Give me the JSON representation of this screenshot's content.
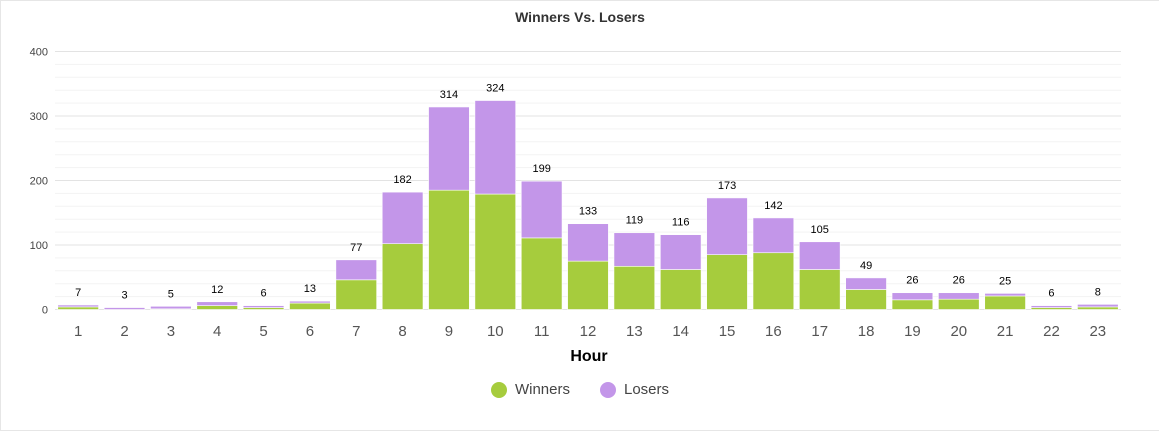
{
  "chart_data": {
    "type": "bar",
    "stacked": true,
    "title": "Winners Vs. Losers",
    "xlabel": "Hour",
    "ylabel": "",
    "ylim": [
      0,
      400
    ],
    "yticks": [
      0,
      100,
      200,
      300,
      400
    ],
    "categories": [
      "1",
      "2",
      "3",
      "4",
      "5",
      "6",
      "7",
      "8",
      "9",
      "10",
      "11",
      "12",
      "13",
      "14",
      "15",
      "16",
      "17",
      "18",
      "19",
      "20",
      "21",
      "22",
      "23"
    ],
    "series": [
      {
        "name": "Winners",
        "color": "#a6cc3d",
        "values": [
          4,
          0,
          1,
          6,
          3,
          10,
          46,
          102,
          185,
          179,
          111,
          75,
          67,
          62,
          85,
          88,
          62,
          31,
          15,
          16,
          21,
          3,
          4
        ]
      },
      {
        "name": "Losers",
        "color": "#c396e9",
        "values": [
          3,
          3,
          4,
          6,
          3,
          3,
          31,
          80,
          129,
          145,
          88,
          58,
          52,
          54,
          88,
          54,
          43,
          18,
          11,
          10,
          4,
          3,
          4
        ]
      }
    ],
    "totals": [
      7,
      3,
      5,
      12,
      6,
      13,
      77,
      182,
      314,
      324,
      199,
      133,
      119,
      116,
      173,
      142,
      105,
      49,
      26,
      26,
      25,
      6,
      8
    ],
    "grid": true,
    "legend": "bottom-center"
  }
}
